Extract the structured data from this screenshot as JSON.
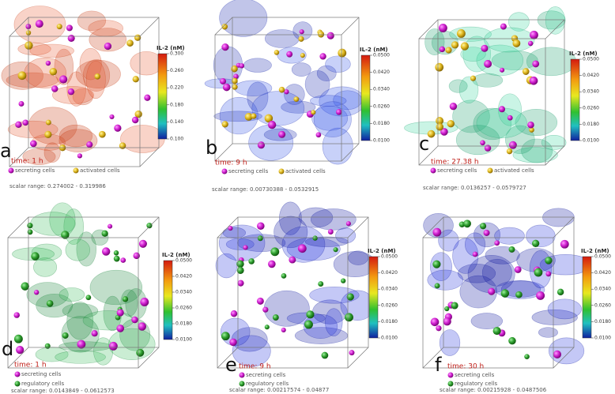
{
  "panels": [
    {
      "letter": "a",
      "time": "time: 1 h",
      "legend": [
        "secreting cells",
        "activated cells"
      ],
      "scalar_range": "scalar range: 0.274002 - 0.319986",
      "colorbar": {
        "title": "IL-2 (nM)",
        "ticks": [
          "0.300",
          "0.260",
          "0.220",
          "0.180",
          "0.140",
          "0.100"
        ]
      }
    },
    {
      "letter": "b",
      "time": "time: 9 h",
      "legend": [
        "secreting cells",
        "activated cells"
      ],
      "scalar_range": "scalar range: 0.00730388 - 0.0532915",
      "colorbar": {
        "title": "IL-2 (nM)",
        "ticks": [
          "0.0500",
          "0.0420",
          "0.0340",
          "0.0260",
          "0.0180",
          "0.0100"
        ]
      }
    },
    {
      "letter": "c",
      "time": "time: 27.38 h",
      "legend": [
        "secreting cells",
        "activated cells"
      ],
      "scalar_range": "scalar range: 0.0136257 - 0.0579727",
      "colorbar": {
        "title": "IL-2 (nM)",
        "ticks": [
          "0.0500",
          "0.0420",
          "0.0340",
          "0.0260",
          "0.0180",
          "0.0100"
        ]
      }
    },
    {
      "letter": "d",
      "time": "time: 1 h",
      "legend": [
        "secreting cells",
        "regulatory cells"
      ],
      "scalar_range": "scalar range: 0.0143849 - 0.0612573",
      "colorbar": {
        "title": "IL-2 (nM)",
        "ticks": [
          "0.0500",
          "0.0420",
          "0.0340",
          "0.0260",
          "0.0180",
          "0.0100"
        ]
      }
    },
    {
      "letter": "e",
      "time": "time: 9 h",
      "legend": [
        "secreting cells",
        "regulatory cells"
      ],
      "scalar_range": "scalar range: 0.00217574 - 0.04877",
      "colorbar": {
        "title": "IL-2 (nM)",
        "ticks": [
          "0.0500",
          "0.0420",
          "0.0340",
          "0.0260",
          "0.0180",
          "0.0100"
        ]
      }
    },
    {
      "letter": "f",
      "time": "time: 30 h",
      "legend": [
        "secreting cells",
        "regulatory cells"
      ],
      "scalar_range": "scalar range: 0.00215928 - 0.0487506",
      "colorbar": {
        "title": "IL-2 (nM)",
        "ticks": [
          "0.0500",
          "0.0420",
          "0.0340",
          "0.0260",
          "0.0180",
          "0.0100"
        ]
      }
    }
  ]
}
